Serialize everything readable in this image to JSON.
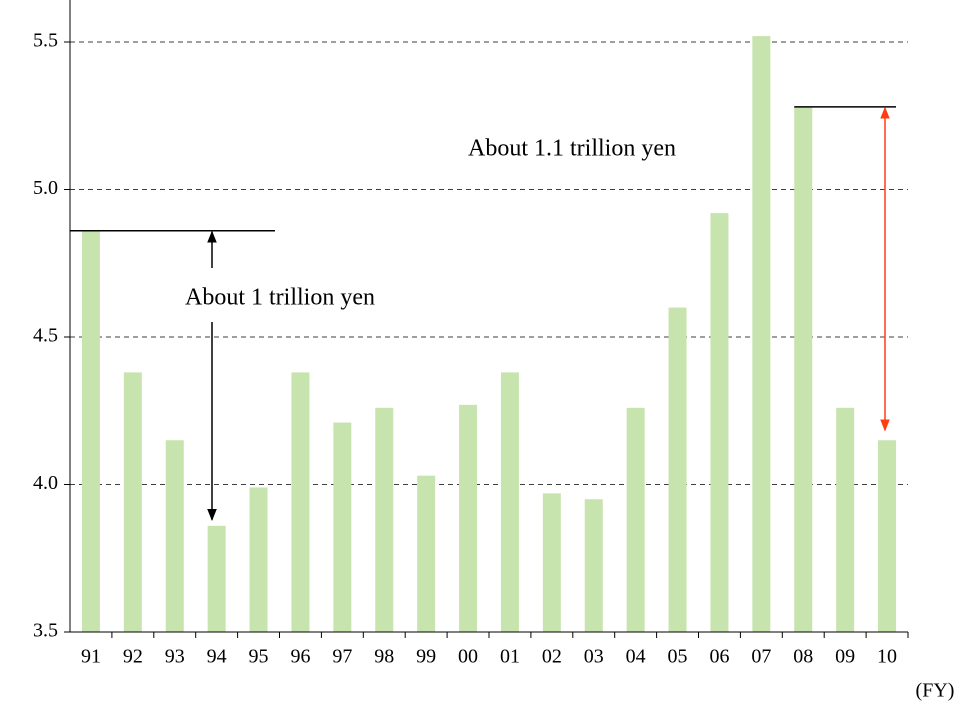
{
  "chart_data": {
    "type": "bar",
    "categories": [
      "91",
      "92",
      "93",
      "94",
      "95",
      "96",
      "97",
      "98",
      "99",
      "00",
      "01",
      "02",
      "03",
      "04",
      "05",
      "06",
      "07",
      "08",
      "09",
      "10"
    ],
    "values": [
      4.86,
      4.38,
      4.15,
      3.86,
      3.99,
      4.38,
      4.21,
      4.26,
      4.03,
      4.27,
      4.38,
      3.97,
      3.95,
      4.26,
      4.6,
      4.92,
      5.52,
      5.28,
      4.26,
      4.15
    ],
    "color": "#c8e4ae",
    "ylim": [
      3.5,
      5.6
    ],
    "yticks": [
      3.5,
      {
        "value": 4.0,
        "label": "4.0"
      },
      4.5,
      {
        "value": 5.0,
        "label": "5.0"
      },
      5.5
    ],
    "grid": true,
    "xlabel": "(FY)",
    "annotations": [
      {
        "text": "About 1 trillion yen",
        "color": "#000000"
      },
      {
        "text": "About 1.1 trillion yen",
        "color": "#ff3c14"
      }
    ]
  }
}
